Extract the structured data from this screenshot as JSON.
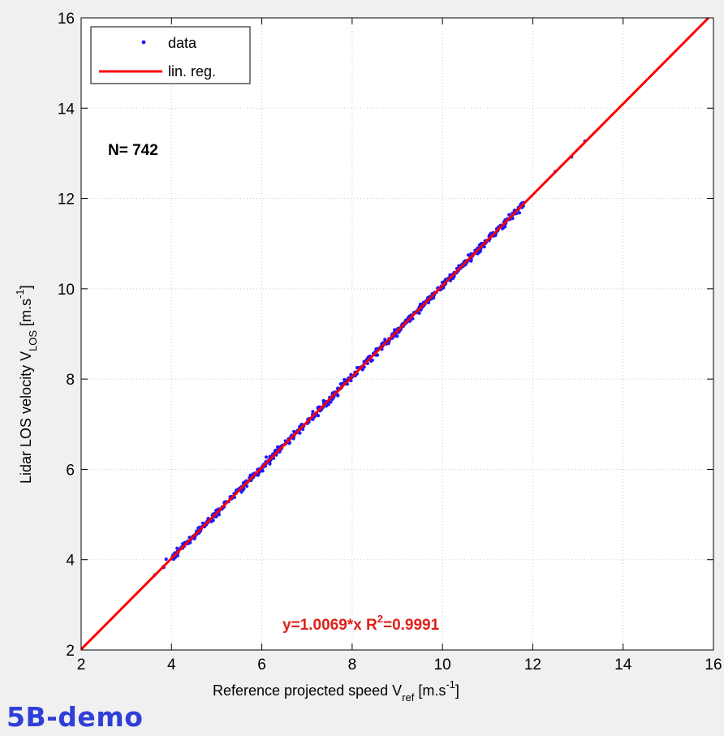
{
  "chart_data": {
    "type": "scatter",
    "xlabel_main": "Reference projected speed V",
    "xlabel_sub": "ref",
    "xlabel_unit_open": " [m.s",
    "xlabel_unit_exp": "-1",
    "xlabel_unit_close": "]",
    "ylabel_main": "Lidar LOS velocity V",
    "ylabel_sub": "LOS",
    "ylabel_unit_open": " [m.s",
    "ylabel_unit_exp": "-1",
    "ylabel_unit_close": "]",
    "xlim": [
      2,
      16
    ],
    "ylim": [
      2,
      16
    ],
    "xticks": [
      2,
      4,
      6,
      8,
      10,
      12,
      14,
      16
    ],
    "yticks": [
      2,
      4,
      6,
      8,
      10,
      12,
      14,
      16
    ],
    "grid": true,
    "legend_position": "top-left",
    "series": [
      {
        "name": "data",
        "style": "dots",
        "color": "#1a1aff",
        "count": 742,
        "x_range": [
          3.3,
          13.5
        ]
      },
      {
        "name": "lin. reg.",
        "style": "line",
        "color": "#ff0000",
        "slope": 1.0069
      }
    ],
    "annotations": {
      "n_text": "N= 742",
      "eq_text": "y=1.0069*x  R",
      "eq_exp": "2",
      "eq_tail": "=0.9991"
    }
  },
  "watermark": "5B-demo",
  "colors": {
    "data": "#1a1aff",
    "regression": "#ff0000",
    "equation": "#e0201a",
    "watermark": "#2f3fd8"
  }
}
